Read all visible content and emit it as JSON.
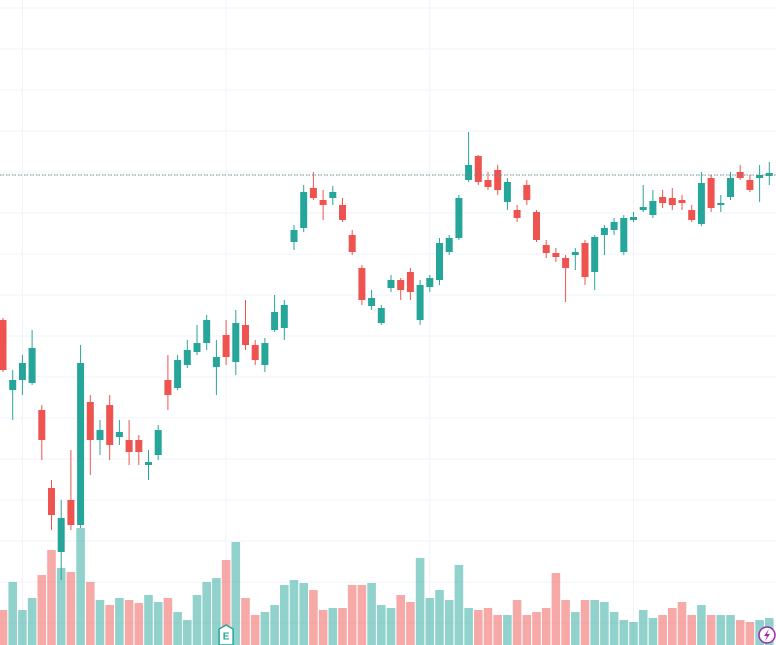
{
  "chart_data": {
    "type": "candlestick",
    "up_color": "#26a69a",
    "down_color": "#ef5350",
    "ylim": [
      0,
      645
    ],
    "yticks": [
      637,
      596,
      555,
      514,
      473,
      432,
      391,
      350,
      309,
      268,
      227,
      186,
      145,
      104,
      63,
      22
    ],
    "xgrid": [
      2,
      23,
      44,
      65
    ],
    "grid": true,
    "price_line": 470,
    "volume_lim": [
      0,
      645
    ],
    "earnings_marker": "E",
    "earnings_at": 23,
    "open": [
      325,
      255,
      265,
      262,
      235,
      157,
      93,
      145,
      120,
      243,
      205,
      240,
      208,
      205,
      205,
      180,
      190,
      265,
      257,
      280,
      293,
      302,
      278,
      310,
      283,
      320,
      300,
      280,
      315,
      317,
      403,
      417,
      457,
      445,
      447,
      440,
      410,
      377,
      339,
      322,
      357,
      365,
      373,
      325,
      358,
      365,
      393,
      407,
      465,
      489,
      465,
      475,
      443,
      435,
      460,
      433,
      400,
      392,
      387,
      390,
      402,
      373,
      410,
      415,
      393,
      425,
      435,
      430,
      448,
      447,
      445,
      435,
      421,
      467,
      440,
      448,
      473,
      465,
      467,
      469
    ],
    "high": [
      327,
      275,
      290,
      315,
      240,
      165,
      145,
      195,
      300,
      250,
      225,
      250,
      225,
      225,
      210,
      195,
      220,
      290,
      290,
      305,
      320,
      330,
      305,
      325,
      335,
      345,
      305,
      307,
      350,
      345,
      420,
      460,
      473,
      455,
      459,
      447,
      415,
      380,
      355,
      340,
      370,
      367,
      377,
      365,
      370,
      407,
      410,
      450,
      513,
      490,
      473,
      480,
      467,
      440,
      465,
      435,
      405,
      397,
      390,
      397,
      405,
      410,
      420,
      427,
      430,
      433,
      460,
      455,
      455,
      457,
      450,
      440,
      473,
      470,
      450,
      473,
      480,
      470,
      480,
      483
    ],
    "low": [
      273,
      225,
      250,
      260,
      185,
      115,
      65,
      115,
      117,
      170,
      190,
      185,
      200,
      180,
      180,
      165,
      185,
      235,
      255,
      277,
      290,
      295,
      250,
      280,
      270,
      295,
      280,
      273,
      313,
      305,
      395,
      413,
      445,
      425,
      440,
      423,
      390,
      340,
      335,
      320,
      353,
      345,
      345,
      320,
      353,
      360,
      390,
      405,
      463,
      460,
      455,
      450,
      435,
      423,
      440,
      403,
      387,
      383,
      343,
      375,
      360,
      355,
      390,
      410,
      390,
      423,
      433,
      427,
      437,
      435,
      435,
      423,
      419,
      433,
      433,
      445,
      465,
      453,
      443,
      460
    ],
    "close": [
      275,
      265,
      282,
      297,
      205,
      130,
      127,
      120,
      282,
      205,
      215,
      200,
      213,
      193,
      193,
      183,
      215,
      250,
      285,
      295,
      302,
      325,
      288,
      288,
      322,
      300,
      285,
      302,
      333,
      340,
      415,
      453,
      447,
      440,
      453,
      425,
      393,
      345,
      347,
      337,
      365,
      355,
      353,
      360,
      367,
      402,
      407,
      447,
      480,
      463,
      458,
      455,
      463,
      427,
      445,
      405,
      392,
      388,
      377,
      393,
      368,
      408,
      417,
      423,
      427,
      428,
      438,
      444,
      442,
      440,
      442,
      425,
      462,
      437,
      442,
      467,
      467,
      455,
      470,
      472
    ],
    "volume": [
      35,
      63,
      35,
      47,
      70,
      95,
      77,
      73,
      117,
      63,
      45,
      40,
      47,
      45,
      42,
      50,
      43,
      47,
      33,
      25,
      50,
      63,
      67,
      85,
      103,
      47,
      30,
      33,
      40,
      60,
      65,
      62,
      55,
      35,
      37,
      37,
      60,
      60,
      62,
      40,
      37,
      50,
      43,
      87,
      47,
      55,
      45,
      80,
      37,
      35,
      37,
      30,
      30,
      45,
      30,
      33,
      37,
      72,
      45,
      33,
      45,
      45,
      43,
      33,
      25,
      23,
      35,
      27,
      30,
      37,
      43,
      30,
      40,
      30,
      30,
      30,
      25,
      23,
      25,
      27
    ]
  }
}
